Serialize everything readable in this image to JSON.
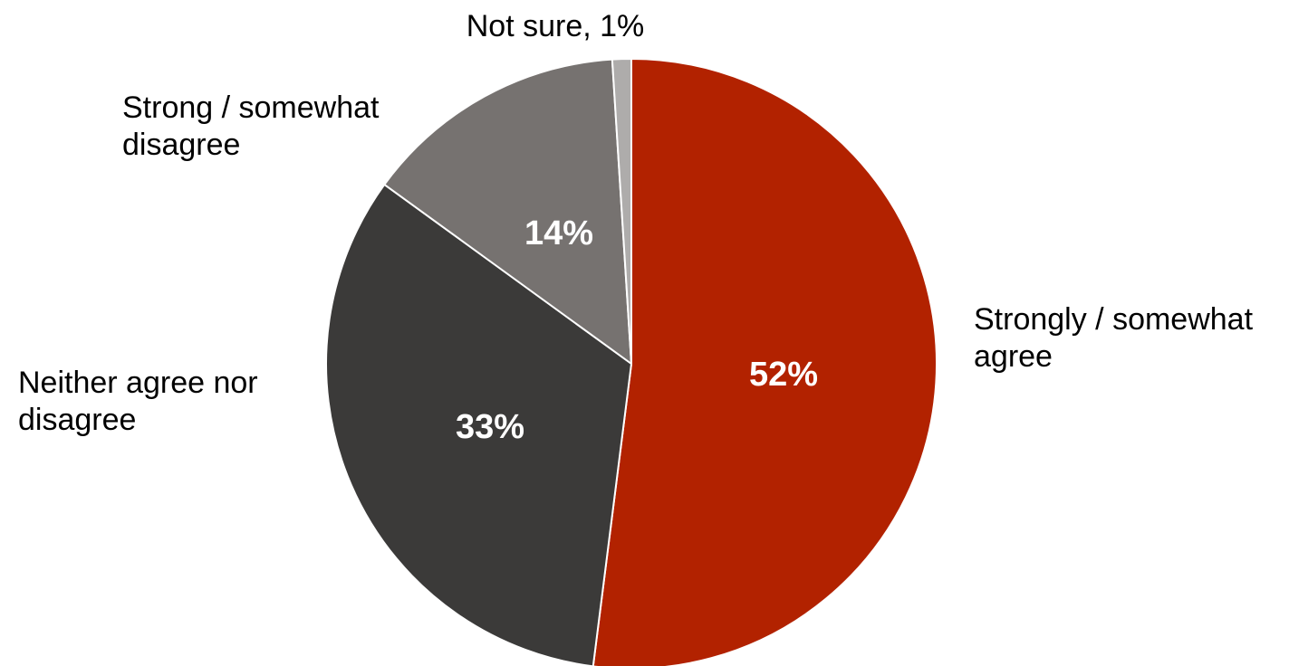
{
  "chart_data": {
    "type": "pie",
    "slices": [
      {
        "label_lines": [
          "Strongly / somewhat",
          "agree"
        ],
        "value": 52,
        "inner_label": "52%",
        "color": "#b22200"
      },
      {
        "label_lines": [
          "Neither agree nor",
          "disagree"
        ],
        "value": 33,
        "inner_label": "33%",
        "color": "#3b3a39"
      },
      {
        "label_lines": [
          "Strong / somewhat",
          "disagree"
        ],
        "value": 14,
        "inner_label": "14%",
        "color": "#767270"
      },
      {
        "label_lines": [
          "Not sure, 1%"
        ],
        "value": 1,
        "inner_label": "",
        "color": "#aeacab"
      }
    ]
  }
}
